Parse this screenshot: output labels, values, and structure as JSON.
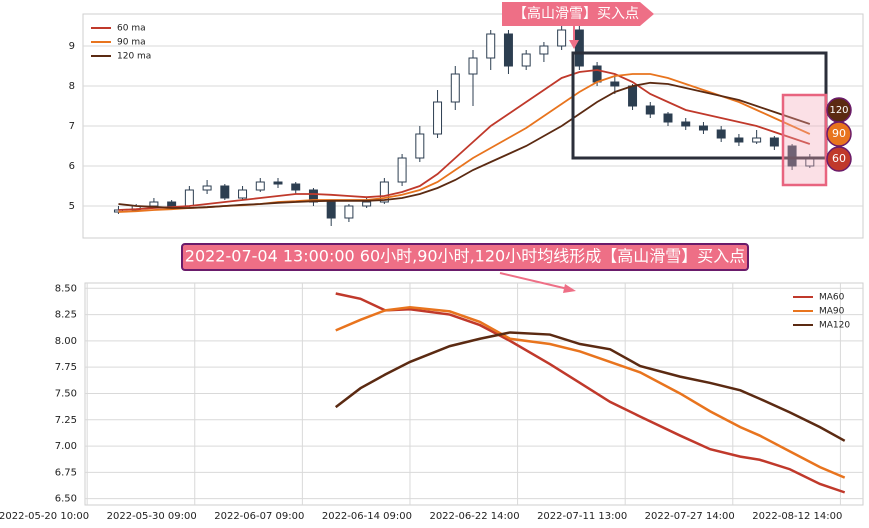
{
  "chart_data": [
    {
      "type": "candlestick",
      "xlim": [
        -2,
        42
      ],
      "ylim": [
        4.2,
        9.8
      ],
      "yticks": [
        5,
        6,
        7,
        8,
        9
      ],
      "grid": true,
      "legend": "upper left",
      "candle_color": "#2c3e50",
      "candles": {
        "open": [
          4.85,
          4.9,
          5.0,
          5.1,
          5.0,
          5.4,
          5.5,
          5.2,
          5.4,
          5.6,
          5.55,
          5.4,
          5.1,
          4.7,
          5.0,
          5.1,
          5.6,
          6.2,
          6.8,
          7.6,
          8.3,
          8.7,
          9.3,
          8.5,
          8.8,
          9.0,
          9.4,
          8.5,
          8.1,
          8.0,
          7.5,
          7.3,
          7.1,
          7.0,
          6.9,
          6.7,
          6.6,
          6.7,
          6.5,
          6.0
        ],
        "high": [
          5.0,
          5.05,
          5.2,
          5.15,
          5.5,
          5.65,
          5.55,
          5.5,
          5.7,
          5.7,
          5.6,
          5.45,
          5.15,
          5.05,
          5.2,
          5.7,
          6.3,
          7.0,
          7.9,
          8.5,
          8.9,
          9.4,
          9.4,
          8.9,
          9.1,
          9.5,
          9.5,
          8.6,
          8.3,
          8.05,
          7.6,
          7.35,
          7.2,
          7.1,
          7.0,
          6.8,
          6.9,
          6.75,
          6.55,
          6.3
        ],
        "low": [
          4.8,
          4.85,
          4.95,
          4.95,
          4.95,
          5.3,
          5.15,
          5.15,
          5.35,
          5.45,
          5.3,
          5.0,
          4.5,
          4.6,
          4.95,
          5.05,
          5.5,
          6.1,
          6.7,
          7.4,
          7.5,
          8.4,
          8.3,
          8.4,
          8.6,
          8.9,
          8.4,
          8.0,
          7.8,
          7.4,
          7.2,
          7.0,
          6.9,
          6.8,
          6.6,
          6.5,
          6.55,
          6.4,
          5.9,
          5.95
        ],
        "close": [
          4.9,
          5.0,
          5.1,
          5.0,
          5.4,
          5.5,
          5.2,
          5.4,
          5.6,
          5.55,
          5.4,
          5.1,
          4.7,
          5.0,
          5.1,
          5.6,
          6.2,
          6.8,
          7.6,
          8.3,
          8.7,
          9.3,
          8.5,
          8.8,
          9.0,
          9.4,
          8.5,
          8.1,
          8.0,
          7.5,
          7.3,
          7.1,
          7.0,
          6.9,
          6.7,
          6.6,
          6.7,
          6.5,
          6.0,
          6.2
        ]
      },
      "series": [
        {
          "name": "60 ma",
          "color": "#c0392b",
          "values": [
            4.9,
            4.92,
            4.95,
            4.97,
            5.0,
            5.05,
            5.1,
            5.15,
            5.2,
            5.25,
            5.3,
            5.3,
            5.28,
            5.25,
            5.22,
            5.25,
            5.35,
            5.5,
            5.8,
            6.2,
            6.6,
            7.0,
            7.3,
            7.6,
            7.9,
            8.2,
            8.35,
            8.4,
            8.3,
            8.1,
            7.8,
            7.6,
            7.4,
            7.3,
            7.2,
            7.1,
            7.0,
            6.85,
            6.7,
            6.55
          ]
        },
        {
          "name": "90 ma",
          "color": "#e8741e",
          "values": [
            4.85,
            4.87,
            4.9,
            4.92,
            4.95,
            4.97,
            5.0,
            5.02,
            5.05,
            5.1,
            5.12,
            5.15,
            5.15,
            5.15,
            5.15,
            5.2,
            5.28,
            5.4,
            5.6,
            5.9,
            6.2,
            6.45,
            6.7,
            6.95,
            7.25,
            7.55,
            7.85,
            8.1,
            8.25,
            8.3,
            8.3,
            8.2,
            8.05,
            7.9,
            7.75,
            7.6,
            7.4,
            7.2,
            7.0,
            6.8
          ]
        },
        {
          "name": "120 ma",
          "color": "#5b2a12",
          "values": [
            5.05,
            5.0,
            4.98,
            4.95,
            4.95,
            4.97,
            5.0,
            5.03,
            5.05,
            5.08,
            5.1,
            5.12,
            5.13,
            5.13,
            5.13,
            5.15,
            5.2,
            5.3,
            5.45,
            5.65,
            5.9,
            6.1,
            6.3,
            6.5,
            6.75,
            7.0,
            7.3,
            7.6,
            7.85,
            8.0,
            8.08,
            8.05,
            7.95,
            7.85,
            7.75,
            7.65,
            7.5,
            7.35,
            7.2,
            7.05
          ]
        }
      ],
      "annotations": {
        "signal": "【高山滑雪】买入点",
        "end_labels": [
          "120",
          "90",
          "60"
        ]
      }
    },
    {
      "type": "line",
      "xlim": [
        -2,
        721
      ],
      "ylim": [
        6.44,
        8.55
      ],
      "grid": true,
      "legend": "upper right",
      "x": [
        231,
        254,
        277,
        300,
        337,
        365,
        393,
        430,
        458,
        486,
        514,
        551,
        579,
        607,
        625,
        653,
        681,
        704
      ],
      "xticks": [
        {
          "value": 0,
          "label": "2022-05-20 10:00"
        },
        {
          "value": 100,
          "label": "2022-05-30 09:00"
        },
        {
          "value": 200,
          "label": "2022-06-07 09:00"
        },
        {
          "value": 300,
          "label": "2022-06-14 09:00"
        },
        {
          "value": 400,
          "label": "2022-06-22 14:00"
        },
        {
          "value": 500,
          "label": "2022-07-11 13:00"
        },
        {
          "value": 600,
          "label": "2022-07-27 14:00"
        },
        {
          "value": 700,
          "label": "2022-08-12 14:00"
        }
      ],
      "yticks": [
        {
          "value": 6.5,
          "label": "6.50"
        },
        {
          "value": 6.75,
          "label": "6.75"
        },
        {
          "value": 7.0,
          "label": "7.00"
        },
        {
          "value": 7.25,
          "label": "7.25"
        },
        {
          "value": 7.5,
          "label": "7.50"
        },
        {
          "value": 7.75,
          "label": "7.75"
        },
        {
          "value": 8.0,
          "label": "8.00"
        },
        {
          "value": 8.25,
          "label": "8.25"
        },
        {
          "value": 8.5,
          "label": "8.50"
        }
      ],
      "series": [
        {
          "name": "MA60",
          "color": "#c0392b",
          "values": [
            8.45,
            8.4,
            8.29,
            8.3,
            8.25,
            8.15,
            8.0,
            7.78,
            7.6,
            7.42,
            7.28,
            7.1,
            6.97,
            6.9,
            6.87,
            6.78,
            6.64,
            6.56
          ]
        },
        {
          "name": "MA90",
          "color": "#e8741e",
          "values": [
            8.1,
            8.2,
            8.29,
            8.32,
            8.28,
            8.18,
            8.02,
            7.97,
            7.9,
            7.8,
            7.7,
            7.5,
            7.33,
            7.18,
            7.1,
            6.95,
            6.8,
            6.7
          ]
        },
        {
          "name": "MA120",
          "color": "#5b2a12",
          "values": [
            7.37,
            7.55,
            7.68,
            7.8,
            7.95,
            8.02,
            8.08,
            8.06,
            7.97,
            7.92,
            7.76,
            7.66,
            7.6,
            7.53,
            7.45,
            7.32,
            7.18,
            7.05
          ]
        }
      ],
      "annotations": {
        "banner": "2022-07-04 13:00:00 60小时,90小时,120小时均线形成【高山滑雪】买入点"
      }
    }
  ]
}
